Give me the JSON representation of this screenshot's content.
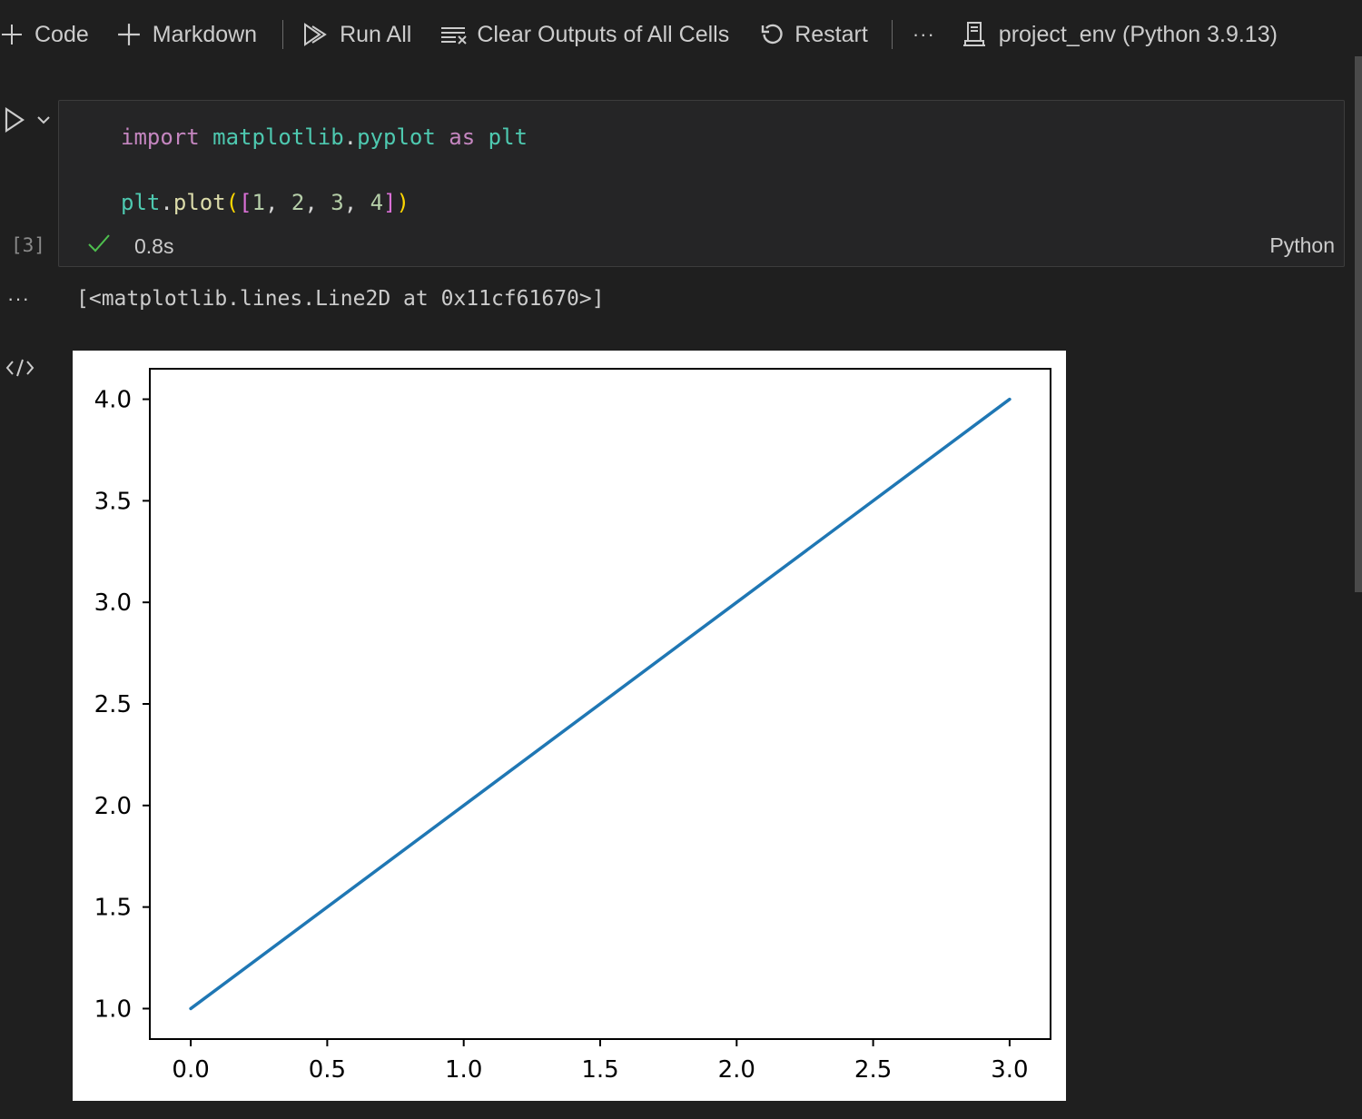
{
  "toolbar": {
    "code_label": "Code",
    "markdown_label": "Markdown",
    "run_all_label": "Run All",
    "clear_outputs_label": "Clear Outputs of All Cells",
    "restart_label": "Restart",
    "more_label": "···",
    "kernel_label": "project_env (Python 3.9.13)"
  },
  "cell": {
    "code": {
      "line1": {
        "kw1": "import",
        "mod1": "matplotlib",
        "dot": ".",
        "mod2": "pyplot",
        "kw2": "as",
        "alias": "plt"
      },
      "line2": {
        "obj": "plt",
        "dot": ".",
        "fn": "plot",
        "open_paren": "(",
        "open_br": "[",
        "n1": "1",
        "c1": ", ",
        "n2": "2",
        "c2": ", ",
        "n3": "3",
        "c3": ", ",
        "n4": "4",
        "close_br": "]",
        "close_paren": ")"
      }
    },
    "execution_count": "[3]",
    "duration": "0.8s",
    "language": "Python"
  },
  "output": {
    "more": "···",
    "text": "[<matplotlib.lines.Line2D at 0x11cf61670>]"
  },
  "chart_data": {
    "type": "line",
    "x": [
      0,
      1,
      2,
      3
    ],
    "series": [
      {
        "values": [
          1,
          2,
          3,
          4
        ],
        "color": "#1f77b4"
      }
    ],
    "xlim": [
      -0.15,
      3.15
    ],
    "ylim": [
      0.85,
      4.15
    ],
    "xticks": [
      "0.0",
      "0.5",
      "1.0",
      "1.5",
      "2.0",
      "2.5",
      "3.0"
    ],
    "xtick_values": [
      0,
      0.5,
      1,
      1.5,
      2,
      2.5,
      3
    ],
    "yticks": [
      "1.0",
      "1.5",
      "2.0",
      "2.5",
      "3.0",
      "3.5",
      "4.0"
    ],
    "ytick_values": [
      1,
      1.5,
      2,
      2.5,
      3,
      3.5,
      4
    ],
    "grid": false
  }
}
